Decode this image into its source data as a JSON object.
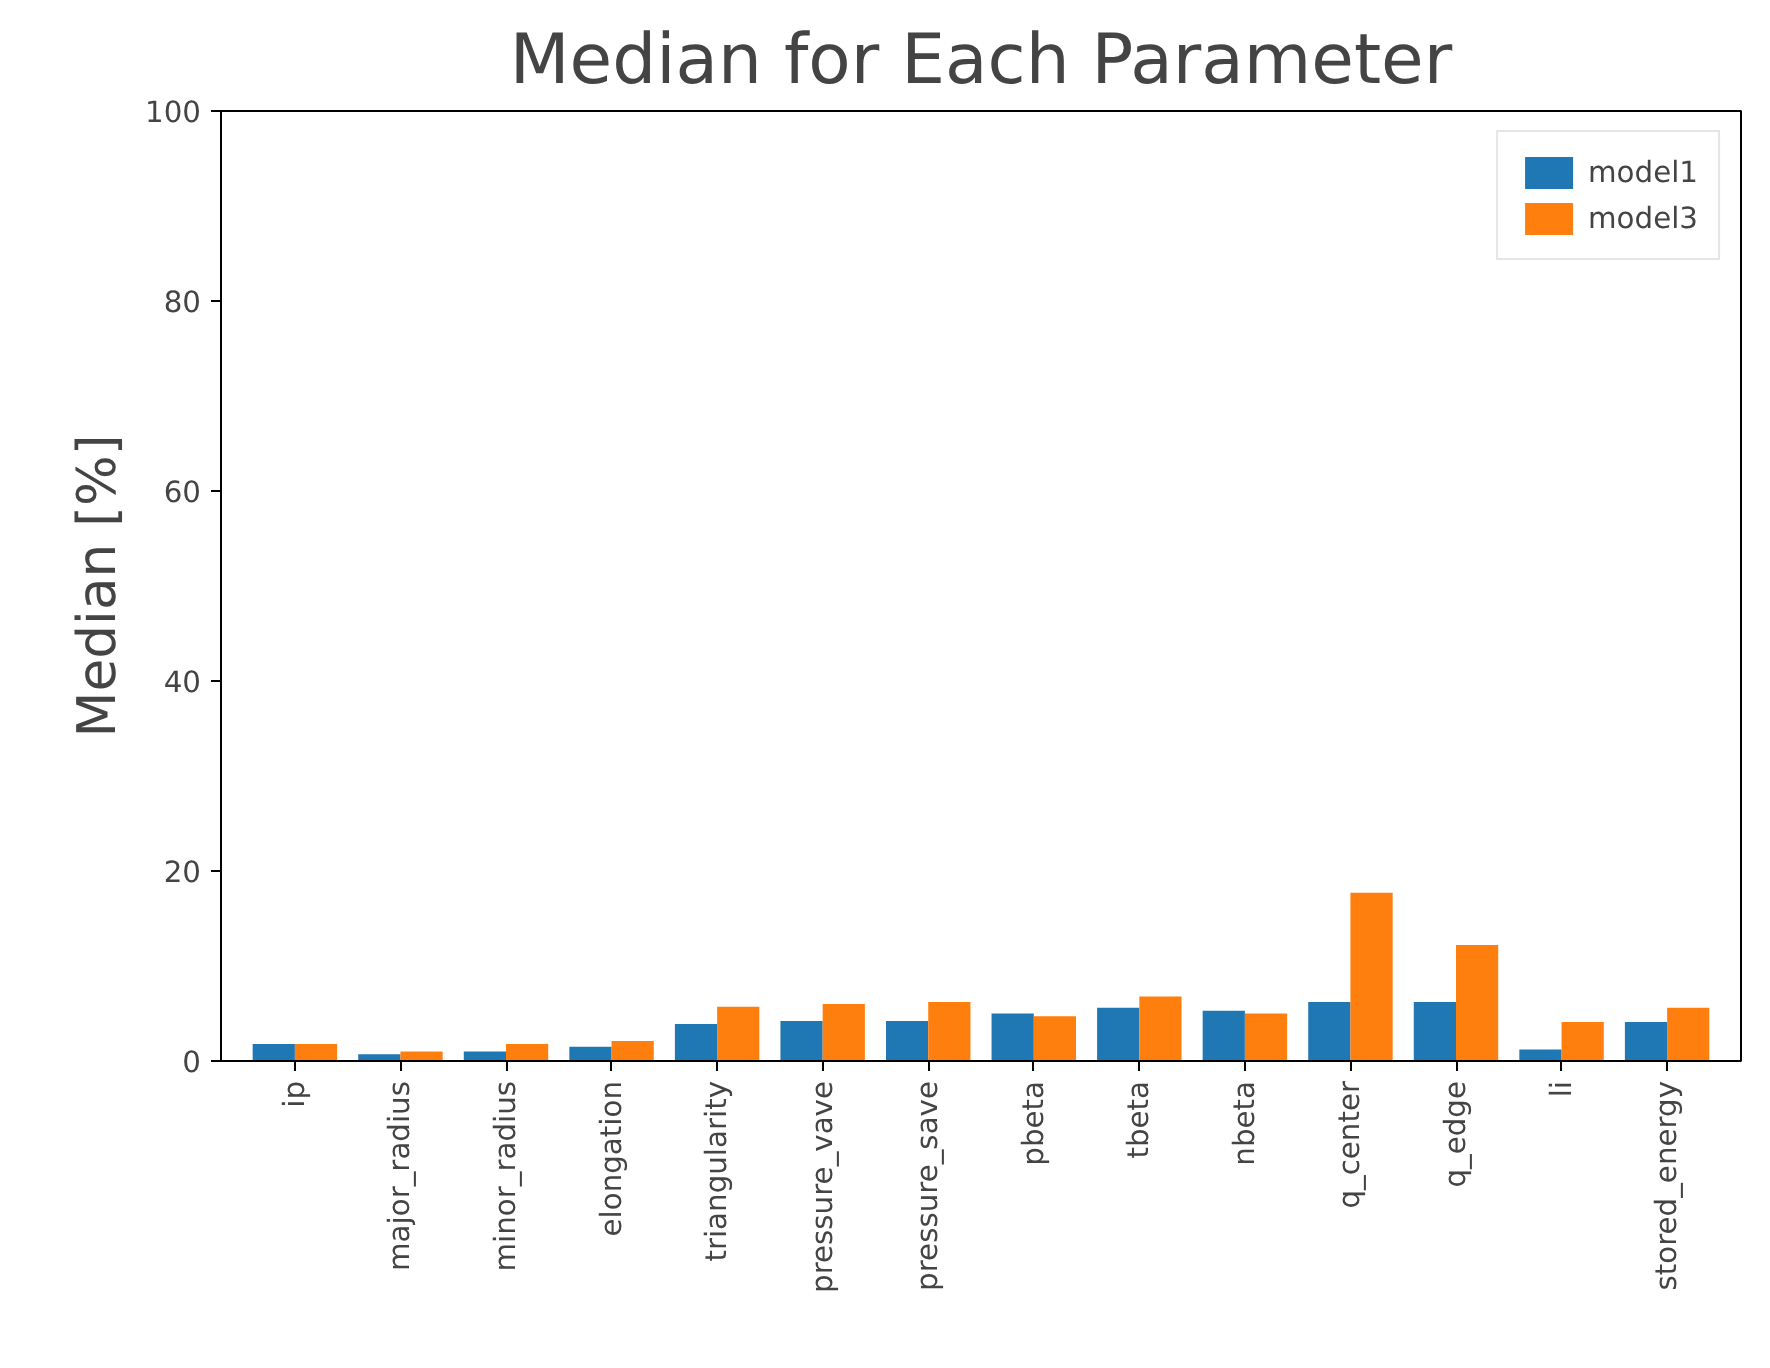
{
  "chart_data": {
    "type": "bar",
    "title": "Median for Each Parameter",
    "ylabel": "Median [%]",
    "categories": [
      "ip",
      "major_radius",
      "minor_radius",
      "elongation",
      "triangularity",
      "pressure_vave",
      "pressure_save",
      "pbeta",
      "tbeta",
      "nbeta",
      "q_center",
      "q_edge",
      "li",
      "stored_energy"
    ],
    "series": [
      {
        "name": "model1",
        "color": "#1f77b4",
        "values": [
          1.8,
          0.7,
          1.0,
          1.5,
          3.9,
          4.2,
          4.2,
          5.0,
          5.6,
          5.3,
          6.2,
          6.2,
          1.2,
          4.1
        ]
      },
      {
        "name": "model3",
        "color": "#ff7f0e",
        "values": [
          1.8,
          1.0,
          1.8,
          2.1,
          5.7,
          6.0,
          6.2,
          4.7,
          6.8,
          5.0,
          17.7,
          12.2,
          4.1,
          5.6
        ]
      }
    ],
    "ylim": [
      0,
      100
    ],
    "yticks": [
      0,
      20,
      40,
      60,
      80,
      100
    ],
    "grid": false,
    "legend": "top right"
  }
}
